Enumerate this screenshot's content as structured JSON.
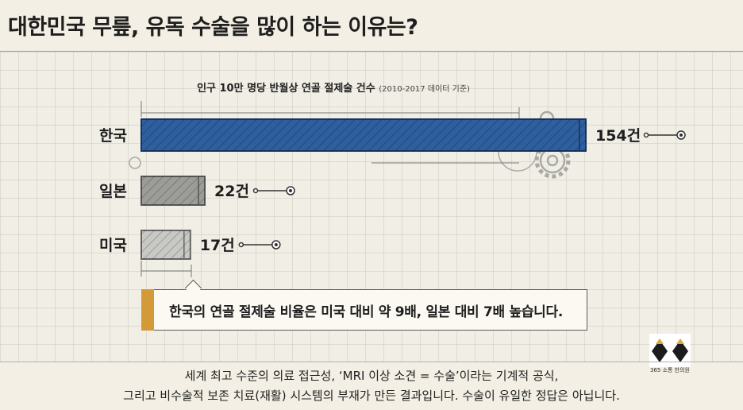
{
  "page": {
    "title": "대한민국 무릎, 유독 수술을 많이 하는 이유는?",
    "callout": "한국의 연골 절제술 비율은 미국 대비 약 9배, 일본 대비 7배 높습니다.",
    "footer_line1": "세계 최고 수준의 의료 접근성, ‘MRI 이상 소견 = 수술’이라는 기계적 공식,",
    "footer_line2": "그리고 비수술적 보존 치료(재활) 시스템의 부재가 만든 결과입니다. 수술이 유일한 정답은 아닙니다.",
    "logo_text": "365 소통 한의원"
  },
  "colors": {
    "korea": "#2e5f9e",
    "japan": "#9c9c98",
    "usa": "#c8c8c4",
    "accent": "#d39a3a"
  },
  "chart_data": {
    "type": "bar",
    "orientation": "horizontal",
    "title": "인구 10만 명당 반월상 연골 절제술 건수",
    "subtitle": "(2010-2017 데이터 기준)",
    "categories": [
      "한국",
      "일본",
      "미국"
    ],
    "values": [
      154,
      22,
      17
    ],
    "value_labels": [
      "154건",
      "22건",
      "17건"
    ],
    "xlim": [
      0,
      154
    ],
    "grid": true
  }
}
